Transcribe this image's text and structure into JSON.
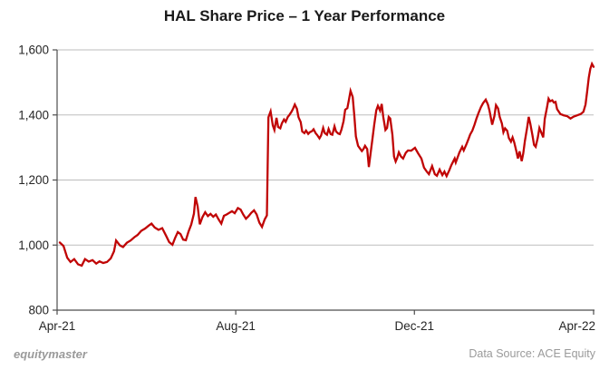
{
  "title": "HAL Share Price – 1 Year Performance",
  "footer": {
    "brand": "equitymaster",
    "source": "Data Source: ACE Equity"
  },
  "colors": {
    "line": "#c00505",
    "grid": "#bdbdbd",
    "axis": "#4d4d4d",
    "tick_label": "#262626",
    "title_text": "#1a1a1a",
    "footer_text": "#9a9a9a",
    "background": "#ffffff"
  },
  "chart_data": {
    "type": "line",
    "title": "HAL Share Price – 1 Year Performance",
    "xlabel": "",
    "ylabel": "",
    "ylim": [
      800,
      1600
    ],
    "grid": "horizontal",
    "legend": "none",
    "x_ticks": {
      "labels": [
        "Apr-21",
        "Aug-21",
        "Dec-21",
        "Apr-22"
      ],
      "fracs": [
        0,
        0.333,
        0.666,
        1
      ]
    },
    "y_ticks": {
      "values": [
        800,
        1000,
        1200,
        1400,
        1600
      ],
      "labels": [
        "800",
        "1,000",
        "1,200",
        "1,400",
        "1,600"
      ]
    },
    "series": [
      {
        "name": "HAL Share Price",
        "color": "#c00505",
        "points": [
          [
            0.005,
            1008
          ],
          [
            0.012,
            997
          ],
          [
            0.019,
            961
          ],
          [
            0.025,
            948
          ],
          [
            0.032,
            957
          ],
          [
            0.039,
            941
          ],
          [
            0.046,
            937
          ],
          [
            0.052,
            957
          ],
          [
            0.059,
            949
          ],
          [
            0.066,
            954
          ],
          [
            0.073,
            943
          ],
          [
            0.079,
            950
          ],
          [
            0.086,
            945
          ],
          [
            0.093,
            948
          ],
          [
            0.1,
            959
          ],
          [
            0.106,
            981
          ],
          [
            0.11,
            1014
          ],
          [
            0.117,
            999
          ],
          [
            0.123,
            994
          ],
          [
            0.13,
            1007
          ],
          [
            0.137,
            1014
          ],
          [
            0.144,
            1024
          ],
          [
            0.15,
            1031
          ],
          [
            0.157,
            1044
          ],
          [
            0.164,
            1051
          ],
          [
            0.171,
            1060
          ],
          [
            0.176,
            1066
          ],
          [
            0.182,
            1054
          ],
          [
            0.189,
            1047
          ],
          [
            0.196,
            1052
          ],
          [
            0.203,
            1029
          ],
          [
            0.209,
            1009
          ],
          [
            0.215,
            1001
          ],
          [
            0.22,
            1022
          ],
          [
            0.225,
            1040
          ],
          [
            0.23,
            1034
          ],
          [
            0.235,
            1017
          ],
          [
            0.24,
            1015
          ],
          [
            0.245,
            1041
          ],
          [
            0.25,
            1063
          ],
          [
            0.255,
            1097
          ],
          [
            0.258,
            1148
          ],
          [
            0.262,
            1119
          ],
          [
            0.266,
            1064
          ],
          [
            0.271,
            1086
          ],
          [
            0.276,
            1101
          ],
          [
            0.281,
            1089
          ],
          [
            0.286,
            1096
          ],
          [
            0.291,
            1087
          ],
          [
            0.296,
            1094
          ],
          [
            0.301,
            1079
          ],
          [
            0.306,
            1066
          ],
          [
            0.311,
            1090
          ],
          [
            0.316,
            1094
          ],
          [
            0.321,
            1099
          ],
          [
            0.326,
            1104
          ],
          [
            0.331,
            1098
          ],
          [
            0.337,
            1114
          ],
          [
            0.342,
            1109
          ],
          [
            0.347,
            1094
          ],
          [
            0.352,
            1081
          ],
          [
            0.357,
            1089
          ],
          [
            0.362,
            1099
          ],
          [
            0.367,
            1107
          ],
          [
            0.372,
            1094
          ],
          [
            0.377,
            1069
          ],
          [
            0.382,
            1056
          ],
          [
            0.387,
            1079
          ],
          [
            0.391,
            1091
          ],
          [
            0.394,
            1393
          ],
          [
            0.398,
            1411
          ],
          [
            0.402,
            1368
          ],
          [
            0.405,
            1354
          ],
          [
            0.409,
            1391
          ],
          [
            0.412,
            1363
          ],
          [
            0.416,
            1359
          ],
          [
            0.419,
            1374
          ],
          [
            0.423,
            1386
          ],
          [
            0.426,
            1379
          ],
          [
            0.43,
            1394
          ],
          [
            0.433,
            1400
          ],
          [
            0.437,
            1410
          ],
          [
            0.44,
            1420
          ],
          [
            0.443,
            1432
          ],
          [
            0.447,
            1419
          ],
          [
            0.45,
            1393
          ],
          [
            0.454,
            1378
          ],
          [
            0.457,
            1349
          ],
          [
            0.461,
            1344
          ],
          [
            0.464,
            1352
          ],
          [
            0.468,
            1342
          ],
          [
            0.471,
            1347
          ],
          [
            0.475,
            1350
          ],
          [
            0.478,
            1356
          ],
          [
            0.482,
            1344
          ],
          [
            0.485,
            1338
          ],
          [
            0.489,
            1328
          ],
          [
            0.492,
            1337
          ],
          [
            0.496,
            1360
          ],
          [
            0.499,
            1344
          ],
          [
            0.503,
            1339
          ],
          [
            0.506,
            1357
          ],
          [
            0.51,
            1341
          ],
          [
            0.513,
            1339
          ],
          [
            0.517,
            1365
          ],
          [
            0.52,
            1349
          ],
          [
            0.524,
            1343
          ],
          [
            0.527,
            1341
          ],
          [
            0.53,
            1355
          ],
          [
            0.534,
            1381
          ],
          [
            0.537,
            1416
          ],
          [
            0.541,
            1421
          ],
          [
            0.544,
            1446
          ],
          [
            0.547,
            1474
          ],
          [
            0.551,
            1455
          ],
          [
            0.554,
            1397
          ],
          [
            0.557,
            1334
          ],
          [
            0.561,
            1305
          ],
          [
            0.564,
            1298
          ],
          [
            0.568,
            1289
          ],
          [
            0.571,
            1295
          ],
          [
            0.574,
            1305
          ],
          [
            0.578,
            1295
          ],
          [
            0.581,
            1240
          ],
          [
            0.585,
            1290
          ],
          [
            0.588,
            1329
          ],
          [
            0.591,
            1369
          ],
          [
            0.595,
            1414
          ],
          [
            0.598,
            1428
          ],
          [
            0.602,
            1413
          ],
          [
            0.605,
            1434
          ],
          [
            0.608,
            1394
          ],
          [
            0.612,
            1354
          ],
          [
            0.615,
            1360
          ],
          [
            0.618,
            1394
          ],
          [
            0.621,
            1389
          ],
          [
            0.625,
            1339
          ],
          [
            0.628,
            1272
          ],
          [
            0.631,
            1257
          ],
          [
            0.634,
            1268
          ],
          [
            0.637,
            1285
          ],
          [
            0.641,
            1272
          ],
          [
            0.645,
            1266
          ],
          [
            0.65,
            1284
          ],
          [
            0.654,
            1291
          ],
          [
            0.66,
            1290
          ],
          [
            0.667,
            1299
          ],
          [
            0.673,
            1282
          ],
          [
            0.679,
            1266
          ],
          [
            0.684,
            1238
          ],
          [
            0.689,
            1226
          ],
          [
            0.693,
            1218
          ],
          [
            0.699,
            1243
          ],
          [
            0.704,
            1218
          ],
          [
            0.708,
            1213
          ],
          [
            0.713,
            1232
          ],
          [
            0.718,
            1215
          ],
          [
            0.722,
            1226
          ],
          [
            0.726,
            1212
          ],
          [
            0.731,
            1230
          ],
          [
            0.735,
            1246
          ],
          [
            0.741,
            1266
          ],
          [
            0.743,
            1254
          ],
          [
            0.75,
            1285
          ],
          [
            0.755,
            1302
          ],
          [
            0.758,
            1291
          ],
          [
            0.763,
            1310
          ],
          [
            0.767,
            1327
          ],
          [
            0.77,
            1340
          ],
          [
            0.774,
            1352
          ],
          [
            0.778,
            1370
          ],
          [
            0.782,
            1390
          ],
          [
            0.786,
            1408
          ],
          [
            0.79,
            1424
          ],
          [
            0.794,
            1436
          ],
          [
            0.799,
            1447
          ],
          [
            0.803,
            1432
          ],
          [
            0.806,
            1412
          ],
          [
            0.811,
            1370
          ],
          [
            0.815,
            1396
          ],
          [
            0.818,
            1430
          ],
          [
            0.822,
            1420
          ],
          [
            0.825,
            1394
          ],
          [
            0.829,
            1374
          ],
          [
            0.832,
            1347
          ],
          [
            0.835,
            1359
          ],
          [
            0.839,
            1351
          ],
          [
            0.842,
            1329
          ],
          [
            0.846,
            1318
          ],
          [
            0.849,
            1331
          ],
          [
            0.852,
            1316
          ],
          [
            0.856,
            1288
          ],
          [
            0.859,
            1266
          ],
          [
            0.862,
            1288
          ],
          [
            0.866,
            1258
          ],
          [
            0.869,
            1282
          ],
          [
            0.872,
            1320
          ],
          [
            0.876,
            1360
          ],
          [
            0.879,
            1394
          ],
          [
            0.882,
            1374
          ],
          [
            0.886,
            1338
          ],
          [
            0.889,
            1308
          ],
          [
            0.892,
            1302
          ],
          [
            0.896,
            1330
          ],
          [
            0.899,
            1360
          ],
          [
            0.902,
            1348
          ],
          [
            0.906,
            1331
          ],
          [
            0.909,
            1388
          ],
          [
            0.913,
            1422
          ],
          [
            0.916,
            1450
          ],
          [
            0.919,
            1442
          ],
          [
            0.923,
            1445
          ],
          [
            0.926,
            1438
          ],
          [
            0.929,
            1440
          ],
          [
            0.932,
            1418
          ],
          [
            0.938,
            1403
          ],
          [
            0.944,
            1399
          ],
          [
            0.951,
            1396
          ],
          [
            0.957,
            1389
          ],
          [
            0.963,
            1395
          ],
          [
            0.97,
            1399
          ],
          [
            0.976,
            1403
          ],
          [
            0.981,
            1410
          ],
          [
            0.985,
            1432
          ],
          [
            0.988,
            1472
          ],
          [
            0.991,
            1515
          ],
          [
            0.994,
            1542
          ],
          [
            0.997,
            1557
          ],
          [
            1.0,
            1548
          ]
        ]
      }
    ]
  }
}
